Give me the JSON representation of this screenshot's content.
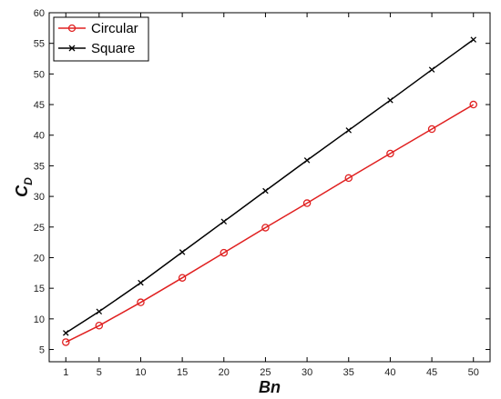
{
  "chart_data": {
    "type": "line",
    "xlabel": "Bn",
    "ylabel_main": "C",
    "ylabel_sub": "D",
    "xlim": [
      -1,
      52
    ],
    "ylim": [
      3,
      60
    ],
    "x_ticks": [
      1,
      5,
      10,
      15,
      20,
      25,
      30,
      35,
      40,
      45,
      50
    ],
    "y_ticks": [
      5,
      10,
      15,
      20,
      25,
      30,
      35,
      40,
      45,
      50,
      55,
      60
    ],
    "grid": false,
    "legend_position": "top-left",
    "x": [
      1,
      5,
      10,
      15,
      20,
      25,
      30,
      35,
      40,
      45,
      50
    ],
    "series": [
      {
        "name": "Circular",
        "color": "#e02020",
        "marker": "circle",
        "values": [
          6.2,
          8.9,
          12.7,
          16.7,
          20.8,
          24.9,
          28.9,
          33.0,
          37.0,
          41.0,
          45.0
        ]
      },
      {
        "name": "Square",
        "color": "#000000",
        "marker": "x",
        "values": [
          7.7,
          11.2,
          15.9,
          20.9,
          25.9,
          30.9,
          35.9,
          40.8,
          45.7,
          50.7,
          55.6
        ]
      }
    ]
  }
}
